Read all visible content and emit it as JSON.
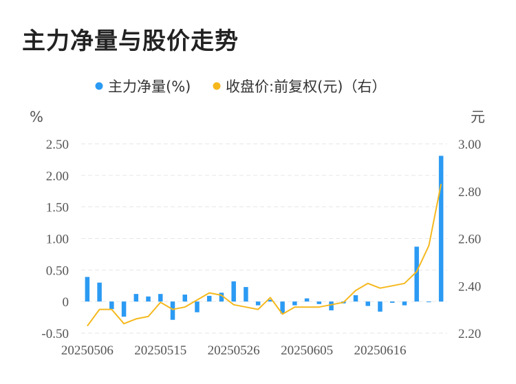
{
  "title": "主力净量与股价走势",
  "colors": {
    "bar": "#2b9af3",
    "line": "#f5b81c",
    "grid": "#e6e6e6"
  },
  "chart_data": {
    "type": "bar",
    "title": "主力净量与股价走势",
    "legend": [
      {
        "name": "主力净量(%)",
        "color": "#2b9af3"
      },
      {
        "name": "收盘价:前复权(元)（右）",
        "color": "#f5b81c"
      }
    ],
    "legend_placement": "top-center",
    "y_left": {
      "unit": "%",
      "ticks": [
        "2.50",
        "2.00",
        "1.50",
        "1.00",
        "0.50",
        "0",
        "-0.50"
      ],
      "range": [
        -0.5,
        2.5
      ]
    },
    "y_right": {
      "unit": "元",
      "ticks": [
        "3.00",
        "2.80",
        "2.60",
        "2.40",
        "2.20"
      ],
      "range": [
        2.2,
        3.0
      ]
    },
    "x_ticks": [
      {
        "label": "20250506",
        "index": 0
      },
      {
        "label": "20250515",
        "index": 6
      },
      {
        "label": "20250526",
        "index": 12
      },
      {
        "label": "20250605",
        "index": 18
      },
      {
        "label": "20250616",
        "index": 24
      }
    ],
    "grid": true,
    "series": [
      {
        "name": "主力净量(%)",
        "type": "bar",
        "values": [
          0.39,
          0.3,
          -0.12,
          -0.24,
          0.12,
          0.08,
          0.12,
          -0.29,
          0.11,
          -0.17,
          0.09,
          0.14,
          0.32,
          0.23,
          -0.06,
          0.03,
          -0.19,
          -0.06,
          0.05,
          -0.04,
          -0.14,
          -0.03,
          0.1,
          -0.07,
          -0.16,
          -0.02,
          -0.06,
          0.87,
          -0.01,
          2.31
        ]
      },
      {
        "name": "收盘价:前复权(元)（右）",
        "type": "line",
        "values": [
          2.23,
          2.3,
          2.3,
          2.24,
          2.26,
          2.27,
          2.33,
          2.3,
          2.31,
          2.34,
          2.37,
          2.36,
          2.32,
          2.31,
          2.3,
          2.35,
          2.28,
          2.31,
          2.31,
          2.31,
          2.32,
          2.33,
          2.38,
          2.41,
          2.39,
          2.4,
          2.41,
          2.46,
          2.57,
          2.83
        ]
      }
    ]
  }
}
